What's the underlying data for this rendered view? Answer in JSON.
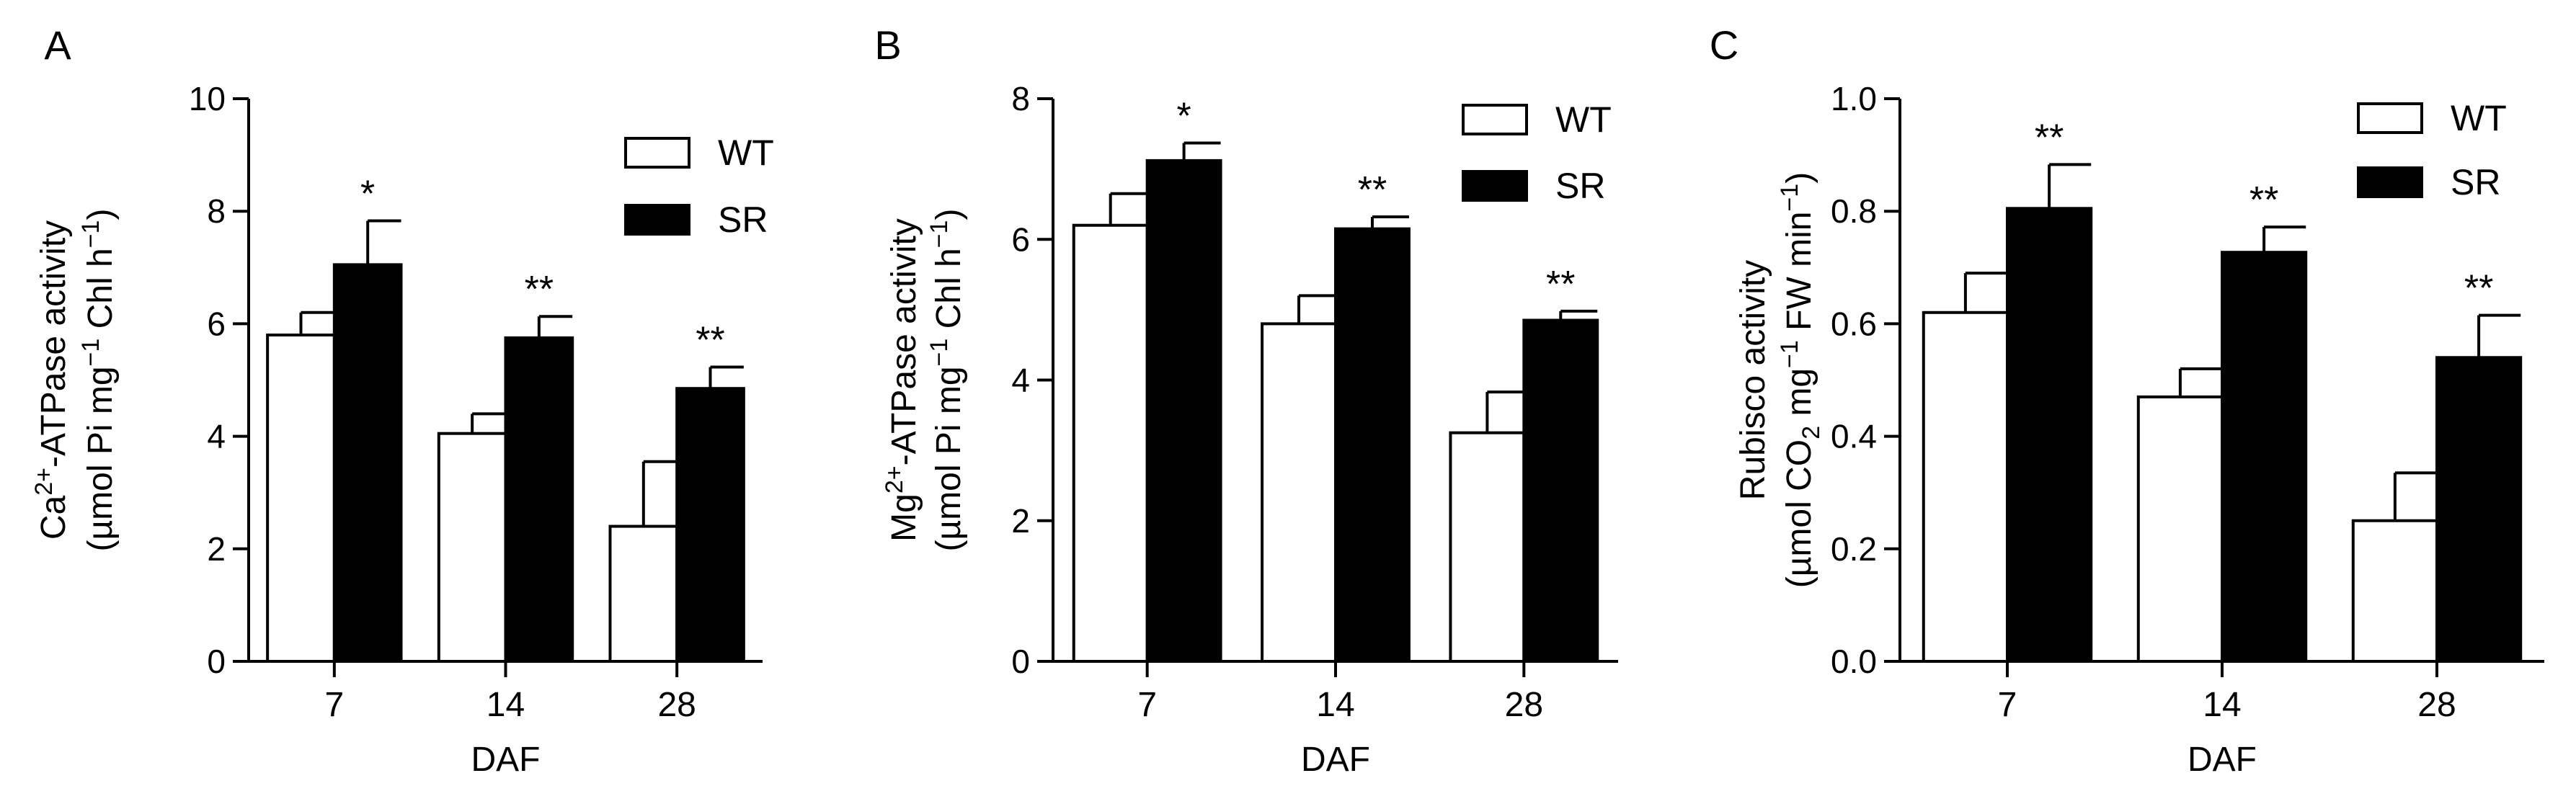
{
  "chart_data": [
    {
      "panel_label": "A",
      "type": "bar",
      "ylabel_lines": [
        {
          "text": "Ca",
          "sup": "2+",
          "rest": "-ATPase activity"
        },
        {
          "text": "(µmol Pi mg",
          "sup": "−1",
          "rest": " Chl h",
          "sup2": "−1",
          "rest2": ")"
        }
      ],
      "xlabel": "DAF",
      "categories": [
        "7",
        "14",
        "28"
      ],
      "ylim": [
        0,
        10
      ],
      "yticks": [
        "0",
        "2",
        "4",
        "6",
        "8",
        "10"
      ],
      "ytick_values": [
        0,
        2,
        4,
        6,
        8,
        10
      ],
      "series": [
        {
          "name": "WT",
          "color": "#ffffff",
          "values": [
            5.8,
            4.05,
            2.4
          ],
          "errors": [
            0.4,
            0.35,
            1.15
          ]
        },
        {
          "name": "SR",
          "color": "#000000",
          "values": [
            7.05,
            5.75,
            4.85
          ],
          "errors": [
            0.78,
            0.38,
            0.38
          ]
        }
      ],
      "significance": [
        "*",
        "**",
        "**"
      ]
    },
    {
      "panel_label": "B",
      "type": "bar",
      "ylabel_lines": [
        {
          "text": "Mg",
          "sup": "2+",
          "rest": "-ATPase activity"
        },
        {
          "text": "(µmol Pi mg",
          "sup": "−1",
          "rest": " Chl h",
          "sup2": "−1",
          "rest2": ")"
        }
      ],
      "xlabel": "DAF",
      "categories": [
        "7",
        "14",
        "28"
      ],
      "ylim": [
        0,
        8
      ],
      "yticks": [
        "0",
        "2",
        "4",
        "6",
        "8"
      ],
      "ytick_values": [
        0,
        2,
        4,
        6,
        8
      ],
      "series": [
        {
          "name": "WT",
          "color": "#ffffff",
          "values": [
            6.2,
            4.8,
            3.25
          ],
          "errors": [
            0.45,
            0.4,
            0.58
          ]
        },
        {
          "name": "SR",
          "color": "#000000",
          "values": [
            7.12,
            6.15,
            4.85
          ],
          "errors": [
            0.25,
            0.17,
            0.13
          ]
        }
      ],
      "significance": [
        "*",
        "**",
        "**"
      ]
    },
    {
      "panel_label": "C",
      "type": "bar",
      "ylabel_lines": [
        {
          "text": "Rubisco activity",
          "sup": "",
          "rest": ""
        },
        {
          "text": "(µmol CO",
          "sub": "2",
          "rest": " mg",
          "sup2": "−1",
          "rest2": " FW min",
          "sup3": "−1",
          "rest3": ")"
        }
      ],
      "xlabel": "DAF",
      "categories": [
        "7",
        "14",
        "28"
      ],
      "ylim": [
        0,
        1.0
      ],
      "yticks": [
        "0.0",
        "0.2",
        "0.4",
        "0.6",
        "0.8",
        "1.0"
      ],
      "ytick_values": [
        0,
        0.2,
        0.4,
        0.6,
        0.8,
        1.0
      ],
      "series": [
        {
          "name": "WT",
          "color": "#ffffff",
          "values": [
            0.62,
            0.47,
            0.25
          ],
          "errors": [
            0.07,
            0.05,
            0.085
          ]
        },
        {
          "name": "SR",
          "color": "#000000",
          "values": [
            0.805,
            0.727,
            0.54
          ],
          "errors": [
            0.078,
            0.045,
            0.075
          ]
        }
      ],
      "significance": [
        "**",
        "**",
        "**"
      ]
    }
  ]
}
